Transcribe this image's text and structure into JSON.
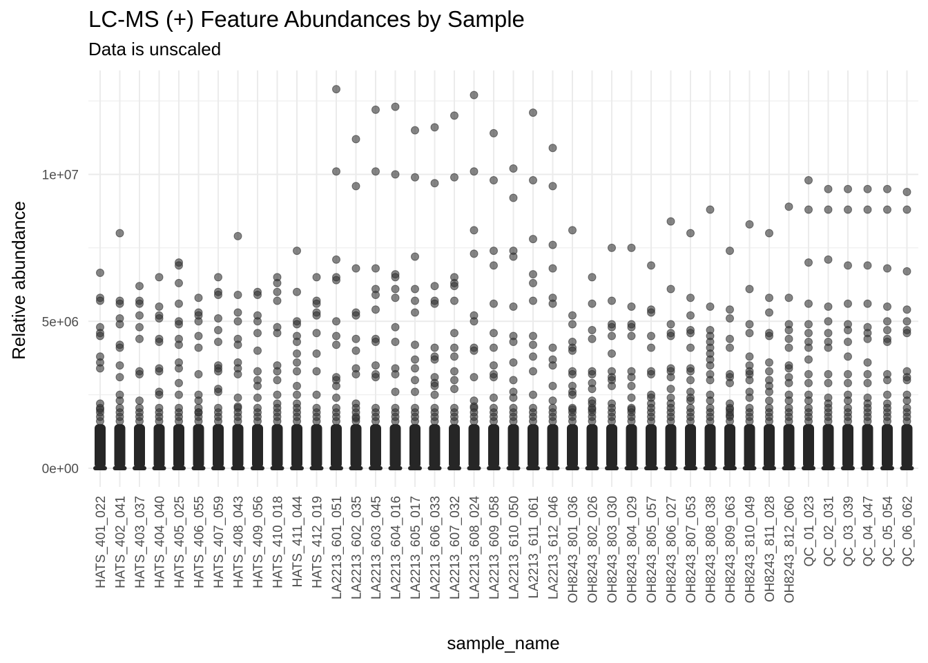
{
  "chart_data": {
    "type": "scatter",
    "title": "LC-MS (+) Feature Abundances by Sample",
    "subtitle": "Data is unscaled",
    "xlabel": "sample_name",
    "ylabel": "Relative abundance",
    "ylim": [
      -600000,
      13000000
    ],
    "y_ticks": [
      {
        "value": 0,
        "label": "0e+00"
      },
      {
        "value": 5000000,
        "label": "5e+06"
      },
      {
        "value": 10000000,
        "label": "1e+07"
      }
    ],
    "grid": true,
    "point_color": "#333333",
    "categories": [
      "HATS_401_022",
      "HATS_402_041",
      "HATS_403_037",
      "HATS_404_040",
      "HATS_405_025",
      "HATS_406_055",
      "HATS_407_059",
      "HATS_408_043",
      "HATS_409_056",
      "HATS_410_018",
      "HATS_411_044",
      "HATS_412_019",
      "LA2213_601_051",
      "LA2213_602_035",
      "LA2213_603_045",
      "LA2213_604_016",
      "LA2213_605_017",
      "LA2213_606_033",
      "LA2213_607_032",
      "LA2213_608_024",
      "LA2213_609_058",
      "LA2213_610_050",
      "LA2213_611_061",
      "LA2213_612_046",
      "OH8243_801_036",
      "OH8243_802_026",
      "OH8243_803_030",
      "OH8243_804_029",
      "OH8243_805_057",
      "OH8243_806_027",
      "OH8243_807_053",
      "OH8243_808_038",
      "OH8243_809_063",
      "OH8243_810_049",
      "OH8243_811_028",
      "OH8243_812_060",
      "QC_01_023",
      "QC_02_031",
      "QC_03_039",
      "QC_04_047",
      "QC_05_054",
      "QC_06_062"
    ],
    "points": [
      [
        6.65,
        5.8,
        5.7,
        4.8,
        4.6,
        4.5,
        3.8,
        3.6,
        3.4,
        2.2,
        2.0
      ],
      [
        8.0,
        5.7,
        5.6,
        5.1,
        4.9,
        4.2,
        4.1,
        3.5,
        3.1,
        2.5,
        2.3
      ],
      [
        6.2,
        5.7,
        5.6,
        5.2,
        4.8,
        4.4,
        3.3,
        3.2,
        2.3
      ],
      [
        6.5,
        5.5,
        5.2,
        5.1,
        4.4,
        4.3,
        3.4,
        3.3,
        2.6,
        2.5
      ],
      [
        7.0,
        6.9,
        6.3,
        5.6,
        5.0,
        4.9,
        4.4,
        4.2,
        3.6,
        3.4,
        2.9,
        2.5
      ],
      [
        5.8,
        5.3,
        5.2,
        5.0,
        4.5,
        4.1,
        3.2,
        2.5,
        2.3,
        1.9
      ],
      [
        6.5,
        6.0,
        5.9,
        5.1,
        4.7,
        4.3,
        3.5,
        3.4,
        3.3,
        2.7,
        2.6
      ],
      [
        7.9,
        5.9,
        5.3,
        5.0,
        4.4,
        4.2,
        3.6,
        3.4,
        3.2,
        2.4,
        2.1
      ],
      [
        6.0,
        5.9,
        5.2,
        5.0,
        4.6,
        4.0,
        3.3,
        3.0,
        2.8,
        2.4
      ],
      [
        6.5,
        6.3,
        6.0,
        5.7,
        4.8,
        4.6,
        3.5,
        3.3,
        3.0,
        2.5,
        2.2
      ],
      [
        7.4,
        6.0,
        5.0,
        4.9,
        4.5,
        4.3,
        3.9,
        3.6,
        3.3,
        2.8,
        2.5,
        2.2
      ],
      [
        6.5,
        5.7,
        5.6,
        5.3,
        5.2,
        4.6,
        3.9,
        3.3,
        2.5
      ],
      [
        12.9,
        10.1,
        7.1,
        6.5,
        6.4,
        5.0,
        4.5,
        4.2,
        3.1,
        3.0,
        2.8,
        2.4
      ],
      [
        11.2,
        9.6,
        6.8,
        5.3,
        5.2,
        4.4,
        4.0,
        3.4,
        3.2,
        2.2,
        1.7
      ],
      [
        12.2,
        10.1,
        6.8,
        6.1,
        5.9,
        5.4,
        4.4,
        4.3,
        3.5,
        3.2,
        3.1
      ],
      [
        12.3,
        10.0,
        6.6,
        6.5,
        6.1,
        5.8,
        4.8,
        4.3,
        3.4,
        3.2,
        2.6
      ],
      [
        11.5,
        9.9,
        7.2,
        6.1,
        5.7,
        5.3,
        4.2,
        3.7,
        3.4,
        3.0,
        2.6
      ],
      [
        11.6,
        9.7,
        6.2,
        5.7,
        5.6,
        4.1,
        3.8,
        3.7,
        3.1,
        2.9,
        2.8,
        2.5
      ],
      [
        12.0,
        9.9,
        6.5,
        6.3,
        6.2,
        5.7,
        4.6,
        4.1,
        3.8,
        3.3,
        3.0,
        2.7
      ],
      [
        12.7,
        10.1,
        8.1,
        7.3,
        5.2,
        5.0,
        4.1,
        4.0,
        3.1,
        2.3,
        2.1
      ],
      [
        11.4,
        9.8,
        7.4,
        6.9,
        5.6,
        4.6,
        4.1,
        3.5,
        3.2,
        3.1,
        2.4
      ],
      [
        10.2,
        9.2,
        7.4,
        7.2,
        5.5,
        4.5,
        4.3,
        3.6,
        3.0,
        2.6,
        2.4
      ],
      [
        12.1,
        9.8,
        7.8,
        6.6,
        6.3,
        5.7,
        4.5,
        4.2,
        3.8,
        3.3,
        2.5
      ],
      [
        10.9,
        9.6,
        7.6,
        6.8,
        5.8,
        5.6,
        4.1,
        3.7,
        3.5,
        2.8,
        2.3
      ],
      [
        8.1,
        5.2,
        4.9,
        4.3,
        4.1,
        4.0,
        3.3,
        3.2,
        2.8,
        2.6,
        2.5,
        2.0
      ],
      [
        6.5,
        5.6,
        4.7,
        4.4,
        3.3,
        3.2,
        2.9,
        2.7,
        2.3,
        2.2,
        2.0
      ],
      [
        7.5,
        5.7,
        4.9,
        4.8,
        4.5,
        3.9,
        3.3,
        3.1,
        3.0,
        2.8,
        2.2
      ],
      [
        7.5,
        5.5,
        4.9,
        4.8,
        4.5,
        3.3,
        3.1,
        2.8,
        2.4,
        2.0
      ],
      [
        6.9,
        5.4,
        5.3,
        4.5,
        4.1,
        3.3,
        3.2,
        2.5,
        2.4,
        2.2
      ],
      [
        8.4,
        6.1,
        4.9,
        4.6,
        4.5,
        3.4,
        3.3,
        3.1,
        2.7,
        2.4,
        2.2
      ],
      [
        8.0,
        5.8,
        5.2,
        4.7,
        4.6,
        4.1,
        3.4,
        3.3,
        3.0,
        2.6,
        2.4,
        2.3
      ],
      [
        8.8,
        5.5,
        4.7,
        4.5,
        4.3,
        4.1,
        3.9,
        3.7,
        3.5,
        3.2,
        3.0,
        2.5,
        2.3
      ],
      [
        7.4,
        5.4,
        5.1,
        4.4,
        4.1,
        3.2,
        3.1,
        2.9,
        2.2,
        2.0,
        1.8
      ],
      [
        8.3,
        6.1,
        4.9,
        4.6,
        3.8,
        3.5,
        3.3,
        3.2,
        3.0,
        2.6,
        2.4
      ],
      [
        8.0,
        5.8,
        5.3,
        4.6,
        4.5,
        3.6,
        3.3,
        3.0,
        2.8,
        2.6,
        2.3
      ],
      [
        8.9,
        5.8,
        4.9,
        4.7,
        4.4,
        4.1,
        3.5,
        3.4,
        3.1,
        2.9,
        2.5,
        2.3
      ],
      [
        9.8,
        8.8,
        7.0,
        5.6,
        4.9,
        4.6,
        4.3,
        4.1,
        3.7,
        3.2,
        2.9,
        2.5,
        2.3
      ],
      [
        9.5,
        8.8,
        7.1,
        5.5,
        5.0,
        4.6,
        4.3,
        4.1,
        3.2,
        2.9,
        2.4,
        2.2
      ],
      [
        9.5,
        8.8,
        6.9,
        5.6,
        4.9,
        4.7,
        4.3,
        3.8,
        3.2,
        2.9,
        2.5,
        2.3
      ],
      [
        9.5,
        8.8,
        6.9,
        5.6,
        4.8,
        4.6,
        4.4,
        3.6,
        3.2,
        2.9,
        2.4,
        2.2
      ],
      [
        9.5,
        8.8,
        6.8,
        5.5,
        5.0,
        4.7,
        4.4,
        4.3,
        3.2,
        3.0,
        2.5,
        2.2
      ],
      [
        9.4,
        8.8,
        6.7,
        5.4,
        5.0,
        4.7,
        4.6,
        3.3,
        3.1,
        3.0,
        2.5,
        2.3
      ]
    ],
    "points_unit": "millions"
  }
}
